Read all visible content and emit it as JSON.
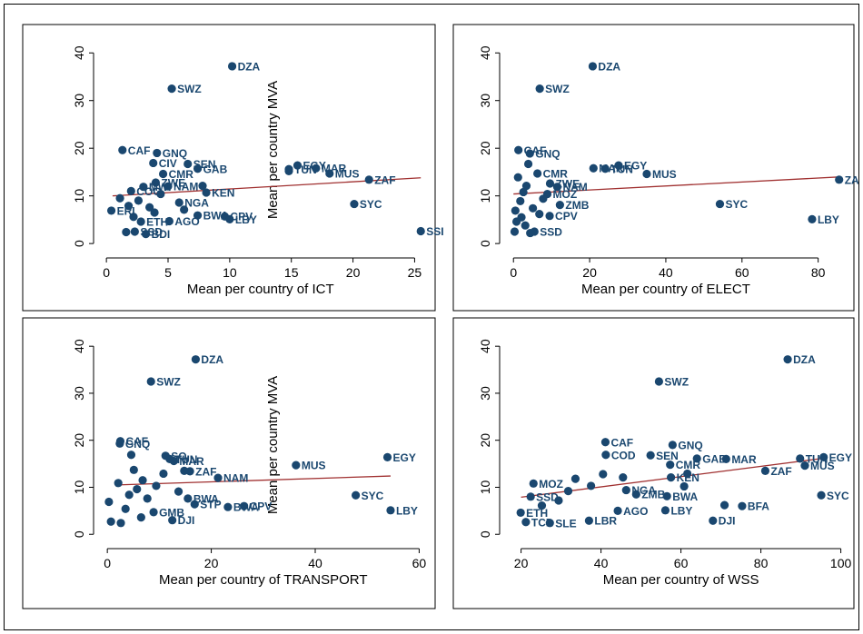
{
  "chart_data": [
    {
      "type": "scatter",
      "panel": "top-left",
      "xlabel": "Mean per country of ICT",
      "ylabel": "Mean per country MVA",
      "xticks": [
        0,
        5,
        10,
        15,
        20,
        25
      ],
      "yticks": [
        0,
        10,
        20,
        30,
        40
      ],
      "xlim": [
        -0.6,
        26
      ],
      "ylim": [
        -1.5,
        41
      ],
      "fit": [
        [
          0.5,
          10.0
        ],
        [
          25.5,
          13.8
        ]
      ],
      "points": [
        {
          "label": "DZA",
          "x": 10.2,
          "y": 37.2
        },
        {
          "label": "SWZ",
          "x": 5.3,
          "y": 32.5
        },
        {
          "label": "CAF",
          "x": 1.3,
          "y": 19.6
        },
        {
          "label": "GNQ",
          "x": 4.1,
          "y": 19.0
        },
        {
          "label": "SEN",
          "x": 6.6,
          "y": 16.7
        },
        {
          "label": "CIV",
          "x": 3.8,
          "y": 16.9
        },
        {
          "label": "GAB",
          "x": 7.4,
          "y": 15.7
        },
        {
          "label": "CMR",
          "x": 4.6,
          "y": 14.6
        },
        {
          "label": "EGY",
          "x": 15.5,
          "y": 16.4
        },
        {
          "label": "MAR",
          "x": 17.0,
          "y": 15.8
        },
        {
          "label": "TUN",
          "x": 14.8,
          "y": 15.6
        },
        {
          "label": "MUS",
          "x": 18.1,
          "y": 14.7
        },
        {
          "label": "ZAF",
          "x": 21.3,
          "y": 13.4
        },
        {
          "label": "NAM",
          "x": 5.0,
          "y": 12.0
        },
        {
          "label": "ZWE",
          "x": 4.0,
          "y": 12.8
        },
        {
          "label": "KEN",
          "x": 8.1,
          "y": 10.7
        },
        {
          "label": "NGA",
          "x": 5.9,
          "y": 8.6
        },
        {
          "label": "MWI",
          "x": 3.0,
          "y": 11.9
        },
        {
          "label": "COG",
          "x": 2.0,
          "y": 11.0
        },
        {
          "label": "SYC",
          "x": 20.1,
          "y": 8.3
        },
        {
          "label": "BWA",
          "x": 7.4,
          "y": 5.9
        },
        {
          "label": "CPV",
          "x": 9.6,
          "y": 5.7
        },
        {
          "label": "LBY",
          "x": 10.0,
          "y": 5.1
        },
        {
          "label": "ETH",
          "x": 2.8,
          "y": 4.6
        },
        {
          "label": "AGO",
          "x": 5.1,
          "y": 4.7
        },
        {
          "label": "ERI",
          "x": 0.4,
          "y": 6.9
        },
        {
          "label": "SSD",
          "x": 2.3,
          "y": 2.5
        },
        {
          "label": "BDI",
          "x": 3.2,
          "y": 2.0
        },
        {
          "label": "SSI",
          "x": 25.5,
          "y": 2.6
        },
        {
          "label": "",
          "x": 1.6,
          "y": 2.4
        },
        {
          "label": "",
          "x": 1.1,
          "y": 9.5
        },
        {
          "label": "",
          "x": 2.6,
          "y": 9.0
        },
        {
          "label": "",
          "x": 3.5,
          "y": 7.6
        },
        {
          "label": "",
          "x": 1.8,
          "y": 7.9
        },
        {
          "label": "",
          "x": 4.4,
          "y": 10.4
        },
        {
          "label": "",
          "x": 2.2,
          "y": 5.6
        },
        {
          "label": "",
          "x": 6.3,
          "y": 7.1
        },
        {
          "label": "",
          "x": 3.9,
          "y": 6.5
        },
        {
          "label": "",
          "x": 7.8,
          "y": 12.1
        },
        {
          "label": "",
          "x": 14.8,
          "y": 15.2
        }
      ]
    },
    {
      "type": "scatter",
      "panel": "top-right",
      "xlabel": "Mean per country of ELECT",
      "ylabel": "",
      "xticks": [
        0,
        20,
        40,
        60,
        80
      ],
      "yticks": [
        0,
        10,
        20,
        30,
        40
      ],
      "xlim": [
        -2.2,
        87
      ],
      "ylim": [
        -1.5,
        41
      ],
      "fit": [
        [
          0,
          10.4
        ],
        [
          86,
          14.0
        ]
      ],
      "points": [
        {
          "label": "DZA",
          "x": 20.8,
          "y": 37.2
        },
        {
          "label": "SWZ",
          "x": 6.9,
          "y": 32.5
        },
        {
          "label": "CAF",
          "x": 1.3,
          "y": 19.6
        },
        {
          "label": "GNQ",
          "x": 4.3,
          "y": 18.9
        },
        {
          "label": "EGY",
          "x": 27.6,
          "y": 16.4
        },
        {
          "label": "MAR",
          "x": 21.0,
          "y": 15.8
        },
        {
          "label": "TUN",
          "x": 24.1,
          "y": 15.7
        },
        {
          "label": "MUS",
          "x": 35.0,
          "y": 14.6
        },
        {
          "label": "ZAF",
          "x": 85.5,
          "y": 13.4
        },
        {
          "label": "CMR",
          "x": 6.3,
          "y": 14.7
        },
        {
          "label": "ZWE",
          "x": 9.6,
          "y": 12.6
        },
        {
          "label": "NAM",
          "x": 11.5,
          "y": 11.9
        },
        {
          "label": "MOZ",
          "x": 8.9,
          "y": 10.4
        },
        {
          "label": "ZMB",
          "x": 12.2,
          "y": 8.1
        },
        {
          "label": "SYC",
          "x": 54.2,
          "y": 8.3
        },
        {
          "label": "LBY",
          "x": 78.4,
          "y": 5.1
        },
        {
          "label": "CPV",
          "x": 9.5,
          "y": 5.8
        },
        {
          "label": "SSD",
          "x": 5.5,
          "y": 2.5
        },
        {
          "label": "",
          "x": 0.3,
          "y": 2.5
        },
        {
          "label": "",
          "x": 0.8,
          "y": 4.6
        },
        {
          "label": "",
          "x": 0.5,
          "y": 6.9
        },
        {
          "label": "",
          "x": 1.8,
          "y": 8.9
        },
        {
          "label": "",
          "x": 2.6,
          "y": 10.8
        },
        {
          "label": "",
          "x": 3.4,
          "y": 12.1
        },
        {
          "label": "",
          "x": 1.2,
          "y": 13.9
        },
        {
          "label": "",
          "x": 3.9,
          "y": 16.7
        },
        {
          "label": "",
          "x": 5.1,
          "y": 7.4
        },
        {
          "label": "",
          "x": 6.8,
          "y": 6.2
        },
        {
          "label": "",
          "x": 2.1,
          "y": 5.5
        },
        {
          "label": "",
          "x": 7.8,
          "y": 9.4
        },
        {
          "label": "",
          "x": 4.4,
          "y": 2.2
        },
        {
          "label": "",
          "x": 3.1,
          "y": 3.8
        }
      ]
    },
    {
      "type": "scatter",
      "panel": "bottom-left",
      "xlabel": "Mean per country of TRANSPORT",
      "ylabel": "Mean per country MVA",
      "xticks": [
        0,
        20,
        40,
        60
      ],
      "yticks": [
        0,
        10,
        20,
        30,
        40
      ],
      "xlim": [
        -1.6,
        61.5
      ],
      "ylim": [
        -1.5,
        41
      ],
      "fit": [
        [
          2,
          10.5
        ],
        [
          54.5,
          12.4
        ]
      ],
      "points": [
        {
          "label": "DZA",
          "x": 17.0,
          "y": 37.2
        },
        {
          "label": "SWZ",
          "x": 8.4,
          "y": 32.5
        },
        {
          "label": "GNQ",
          "x": 2.4,
          "y": 19.3
        },
        {
          "label": "CAF",
          "x": 2.5,
          "y": 19.8
        },
        {
          "label": "SO",
          "x": 11.2,
          "y": 16.7
        },
        {
          "label": "MAR",
          "x": 12.8,
          "y": 15.6
        },
        {
          "label": "TUN",
          "x": 12.0,
          "y": 16.0
        },
        {
          "label": "EGY",
          "x": 53.9,
          "y": 16.4
        },
        {
          "label": "MUS",
          "x": 36.3,
          "y": 14.7
        },
        {
          "label": "ZAF",
          "x": 15.9,
          "y": 13.4
        },
        {
          "label": "NAM",
          "x": 21.3,
          "y": 12.0
        },
        {
          "label": "SYC",
          "x": 47.8,
          "y": 8.3
        },
        {
          "label": "LBY",
          "x": 54.5,
          "y": 5.1
        },
        {
          "label": "BWA",
          "x": 15.5,
          "y": 7.6
        },
        {
          "label": "STP",
          "x": 16.8,
          "y": 6.4
        },
        {
          "label": "BWA",
          "x": 23.2,
          "y": 5.8
        },
        {
          "label": "CPV",
          "x": 26.3,
          "y": 6.0
        },
        {
          "label": "GMB",
          "x": 8.9,
          "y": 4.7
        },
        {
          "label": "DJI",
          "x": 12.5,
          "y": 3.0
        },
        {
          "label": "",
          "x": 2.1,
          "y": 10.9
        },
        {
          "label": "",
          "x": 0.3,
          "y": 6.9
        },
        {
          "label": "",
          "x": 0.7,
          "y": 2.7
        },
        {
          "label": "",
          "x": 2.6,
          "y": 2.4
        },
        {
          "label": "",
          "x": 4.2,
          "y": 8.4
        },
        {
          "label": "",
          "x": 3.5,
          "y": 5.4
        },
        {
          "label": "",
          "x": 5.7,
          "y": 9.6
        },
        {
          "label": "",
          "x": 6.8,
          "y": 11.5
        },
        {
          "label": "",
          "x": 7.7,
          "y": 7.6
        },
        {
          "label": "",
          "x": 9.4,
          "y": 10.3
        },
        {
          "label": "",
          "x": 10.8,
          "y": 12.9
        },
        {
          "label": "",
          "x": 5.1,
          "y": 13.7
        },
        {
          "label": "",
          "x": 4.6,
          "y": 16.9
        },
        {
          "label": "",
          "x": 13.7,
          "y": 9.1
        },
        {
          "label": "",
          "x": 6.5,
          "y": 3.6
        },
        {
          "label": "",
          "x": 14.8,
          "y": 13.5
        }
      ]
    },
    {
      "type": "scatter",
      "panel": "bottom-right",
      "xlabel": "Mean per country of WSS",
      "ylabel": "",
      "xticks": [
        20,
        40,
        60,
        80,
        100
      ],
      "yticks": [
        0,
        10,
        20,
        30,
        40
      ],
      "xlim": [
        16,
        101
      ],
      "ylim": [
        -1.5,
        41
      ],
      "fit": [
        [
          20,
          7.9
        ],
        [
          96,
          16.2
        ]
      ],
      "points": [
        {
          "label": "DZA",
          "x": 86.7,
          "y": 37.2
        },
        {
          "label": "SWZ",
          "x": 54.5,
          "y": 32.5
        },
        {
          "label": "CAF",
          "x": 41.1,
          "y": 19.6
        },
        {
          "label": "GNQ",
          "x": 57.9,
          "y": 19.0
        },
        {
          "label": "COD",
          "x": 41.2,
          "y": 16.9
        },
        {
          "label": "SEN",
          "x": 52.4,
          "y": 16.8
        },
        {
          "label": "CMR",
          "x": 57.3,
          "y": 14.8
        },
        {
          "label": "GAB",
          "x": 64.0,
          "y": 16.1
        },
        {
          "label": "MAR",
          "x": 71.3,
          "y": 16.0
        },
        {
          "label": "TUN",
          "x": 89.8,
          "y": 16.1
        },
        {
          "label": "EGY",
          "x": 95.7,
          "y": 16.4
        },
        {
          "label": "MUS",
          "x": 91.0,
          "y": 14.6
        },
        {
          "label": "ZAF",
          "x": 81.1,
          "y": 13.5
        },
        {
          "label": "KEN",
          "x": 57.5,
          "y": 12.1
        },
        {
          "label": "MOZ",
          "x": 23.1,
          "y": 10.8
        },
        {
          "label": "NGA",
          "x": 46.3,
          "y": 9.4
        },
        {
          "label": "ZMB",
          "x": 48.8,
          "y": 8.5
        },
        {
          "label": "BWA",
          "x": 56.5,
          "y": 8.1
        },
        {
          "label": "SSD",
          "x": 22.4,
          "y": 8.0
        },
        {
          "label": "SYC",
          "x": 95.1,
          "y": 8.3
        },
        {
          "label": "BFA",
          "x": 75.3,
          "y": 6.0
        },
        {
          "label": "LBY",
          "x": 56.1,
          "y": 5.1
        },
        {
          "label": "AGO",
          "x": 44.2,
          "y": 5.0
        },
        {
          "label": "ETH",
          "x": 19.9,
          "y": 4.6
        },
        {
          "label": "LBR",
          "x": 37.0,
          "y": 2.9
        },
        {
          "label": "DJI",
          "x": 68.0,
          "y": 2.9
        },
        {
          "label": "SLE",
          "x": 27.2,
          "y": 2.4
        },
        {
          "label": "TCD",
          "x": 21.2,
          "y": 2.6
        },
        {
          "label": "",
          "x": 33.6,
          "y": 11.8
        },
        {
          "label": "",
          "x": 37.5,
          "y": 10.3
        },
        {
          "label": "",
          "x": 29.4,
          "y": 7.2
        },
        {
          "label": "",
          "x": 40.5,
          "y": 12.8
        },
        {
          "label": "",
          "x": 45.5,
          "y": 12.1
        },
        {
          "label": "",
          "x": 60.8,
          "y": 10.2
        },
        {
          "label": "",
          "x": 25.2,
          "y": 6.1
        },
        {
          "label": "",
          "x": 31.8,
          "y": 9.2
        },
        {
          "label": "",
          "x": 70.9,
          "y": 6.2
        },
        {
          "label": "",
          "x": 61.6,
          "y": 12.9
        }
      ]
    }
  ]
}
